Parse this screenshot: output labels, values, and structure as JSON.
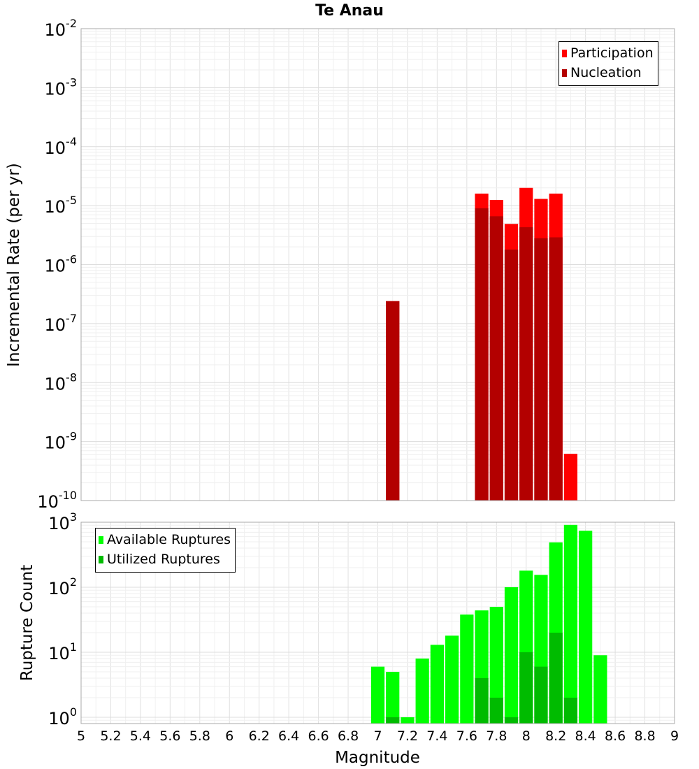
{
  "chart_data": [
    {
      "type": "bar",
      "title": "Te Anau",
      "xlabel": "",
      "ylabel": "Incremental Rate (per yr)",
      "yscale": "log",
      "ylim": [
        1e-10,
        0.01
      ],
      "xlim": [
        5,
        9
      ],
      "grid": true,
      "legend": "top-right",
      "x": [
        7.1,
        7.7,
        7.8,
        7.9,
        8.0,
        8.1,
        8.2,
        8.3
      ],
      "series": [
        {
          "name": "Participation",
          "color": "#ff0000",
          "values": [
            2.4e-07,
            1.6e-05,
            1.25e-05,
            4.9e-06,
            2e-05,
            1.3e-05,
            1.6e-05,
            6.2e-10
          ]
        },
        {
          "name": "Nucleation",
          "color": "#b30000",
          "values": [
            2.4e-07,
            9e-06,
            6.6e-06,
            1.8e-06,
            4.3e-06,
            2.8e-06,
            2.9e-06,
            null
          ]
        }
      ],
      "yticks": [
        {
          "base": "10",
          "exp": "-2"
        },
        {
          "base": "10",
          "exp": "-3"
        },
        {
          "base": "10",
          "exp": "-4"
        },
        {
          "base": "10",
          "exp": "-5"
        },
        {
          "base": "10",
          "exp": "-6"
        },
        {
          "base": "10",
          "exp": "-7"
        },
        {
          "base": "10",
          "exp": "-8"
        },
        {
          "base": "10",
          "exp": "-9"
        },
        {
          "base": "10",
          "exp": "-10"
        }
      ]
    },
    {
      "type": "bar",
      "title": "",
      "xlabel": "Magnitude",
      "ylabel": "Rupture Count",
      "yscale": "log",
      "ylim": [
        0.8,
        1000
      ],
      "xlim": [
        5,
        9
      ],
      "grid": true,
      "legend": "top-left",
      "x": [
        7.0,
        7.1,
        7.2,
        7.3,
        7.4,
        7.5,
        7.6,
        7.7,
        7.8,
        7.9,
        8.0,
        8.1,
        8.2,
        8.3,
        8.4,
        8.5
      ],
      "series": [
        {
          "name": "Available Ruptures",
          "color": "#00ff00",
          "values": [
            6,
            5,
            1,
            8,
            13,
            18,
            38,
            44,
            50,
            100,
            180,
            155,
            490,
            910,
            740,
            9
          ]
        },
        {
          "name": "Utilized Ruptures",
          "color": "#00bb00",
          "values": [
            null,
            1,
            null,
            null,
            null,
            null,
            null,
            4,
            2,
            1,
            10,
            6,
            20,
            2,
            null,
            null
          ]
        }
      ],
      "yticks": [
        {
          "base": "10",
          "exp": "3"
        },
        {
          "base": "10",
          "exp": "2"
        },
        {
          "base": "10",
          "exp": "1"
        },
        {
          "base": "10",
          "exp": "0"
        }
      ],
      "xticks": [
        "5",
        "5.2",
        "5.4",
        "5.6",
        "5.8",
        "6",
        "6.2",
        "6.4",
        "6.6",
        "6.8",
        "7",
        "7.2",
        "7.4",
        "7.6",
        "7.8",
        "8",
        "8.2",
        "8.4",
        "8.6",
        "8.8",
        "9"
      ]
    }
  ]
}
